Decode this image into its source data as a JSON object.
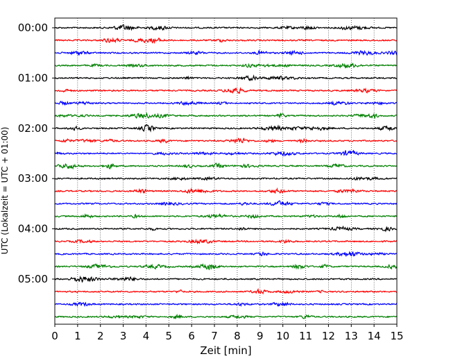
{
  "chart_data": {
    "type": "line",
    "xlabel": "Zeit  [min]",
    "ylabel": "UTC (Lokalzeit = UTC + 01:00)",
    "xlim": [
      0,
      15
    ],
    "x_ticks": [
      "0",
      "1",
      "2",
      "3",
      "4",
      "5",
      "6",
      "7",
      "8",
      "9",
      "10",
      "11",
      "12",
      "13",
      "14",
      "15"
    ],
    "y_ticks": [
      "00:00",
      "01:00",
      "02:00",
      "03:00",
      "04:00",
      "05:00"
    ],
    "trace_interval_min": 15,
    "trace_count": 24,
    "first_trace": "00:00",
    "colors_cycle": [
      "#000000",
      "#ff0000",
      "#0000ff",
      "#008000"
    ],
    "grid": "vertical dotted lines at each minute"
  }
}
